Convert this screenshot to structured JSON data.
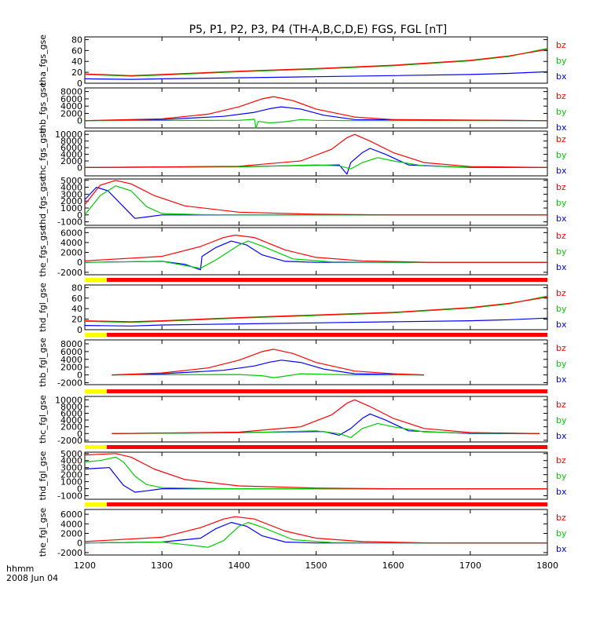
{
  "figure": {
    "title": "P5, P1, P2, P3, P4 (TH-A,B,C,D,E) FGS, FGL [nT]",
    "xaxis_label_line1": "hhmm",
    "xaxis_label_line2": "2008 Jun 04"
  },
  "colors": {
    "bx": "#0000ff",
    "by": "#00cc00",
    "bz": "#ff0000",
    "bar_yellow": "#ffff00",
    "bar_red": "#ff0000",
    "bar_black": "#000000",
    "axis": "#000000"
  },
  "chart_data": [
    {
      "type": "line",
      "panel": "tha_fgs_gse",
      "ylabel": "tha_fgs_gse",
      "ylim": [
        0,
        85
      ],
      "yticks": [
        0,
        20,
        40,
        60,
        80
      ],
      "xlim": [
        1200,
        1800
      ],
      "legend": [
        "bz",
        "by",
        "bx"
      ],
      "series": [
        {
          "name": "bz",
          "x": [
            1200,
            1260,
            1300,
            1400,
            1500,
            1600,
            1700,
            1750,
            1800
          ],
          "y": [
            17,
            14,
            16,
            22,
            27,
            33,
            42,
            50,
            62
          ]
        },
        {
          "name": "by",
          "x": [
            1200,
            1260,
            1300,
            1400,
            1500,
            1600,
            1700,
            1750,
            1800
          ],
          "y": [
            16,
            13,
            15,
            21,
            26,
            32,
            41,
            49,
            64
          ]
        },
        {
          "name": "bx",
          "x": [
            1200,
            1260,
            1300,
            1400,
            1500,
            1600,
            1700,
            1750,
            1800
          ],
          "y": [
            8,
            7,
            8,
            10,
            12,
            14,
            16,
            18,
            21
          ]
        }
      ]
    },
    {
      "type": "line",
      "panel": "thb_fgs_gse",
      "ylabel": "thb_fgs_gse",
      "ylim": [
        -2000,
        9000
      ],
      "yticks": [
        0,
        2000,
        4000,
        6000,
        8000
      ],
      "xlim": [
        1200,
        1800
      ],
      "legend": [
        "bz",
        "by",
        "bx"
      ],
      "series": [
        {
          "name": "bz",
          "x": [
            1200,
            1300,
            1360,
            1400,
            1430,
            1445,
            1470,
            1500,
            1550,
            1600,
            1800
          ],
          "y": [
            0,
            500,
            1800,
            3800,
            6000,
            6600,
            5500,
            3200,
            1000,
            300,
            0
          ]
        },
        {
          "name": "by",
          "x": [
            1200,
            1400,
            1420,
            1422,
            1425,
            1440,
            1460,
            1480,
            1500,
            1550,
            1800
          ],
          "y": [
            0,
            100,
            400,
            -2000,
            -200,
            -600,
            -300,
            300,
            100,
            0,
            0
          ]
        },
        {
          "name": "bx",
          "x": [
            1200,
            1300,
            1380,
            1420,
            1440,
            1455,
            1480,
            1510,
            1550,
            1800
          ],
          "y": [
            0,
            300,
            1200,
            2300,
            3300,
            3800,
            3200,
            1500,
            300,
            0
          ]
        }
      ]
    },
    {
      "type": "line",
      "panel": "thc_fgs_gse",
      "ylabel": "thc_fgs_gse",
      "ylim": [
        -2500,
        11000
      ],
      "yticks": [
        0,
        2000,
        4000,
        6000,
        8000,
        10000
      ],
      "xlim": [
        1200,
        1800
      ],
      "legend": [
        "bz",
        "by",
        "bx"
      ],
      "series": [
        {
          "name": "bz",
          "x": [
            1200,
            1400,
            1480,
            1520,
            1540,
            1550,
            1570,
            1600,
            1640,
            1700,
            1800
          ],
          "y": [
            0,
            400,
            2000,
            5500,
            9000,
            10000,
            8000,
            4500,
            1500,
            300,
            0
          ]
        },
        {
          "name": "by",
          "x": [
            1200,
            1400,
            1500,
            1530,
            1545,
            1560,
            1580,
            1600,
            1640,
            1700,
            1800
          ],
          "y": [
            0,
            200,
            800,
            500,
            -400,
            1500,
            3000,
            2000,
            500,
            100,
            0
          ]
        },
        {
          "name": "bx",
          "x": [
            1200,
            1400,
            1530,
            1540,
            1545,
            1560,
            1570,
            1590,
            1620,
            1700,
            1800
          ],
          "y": [
            0,
            300,
            800,
            -2000,
            1500,
            4500,
            5800,
            4000,
            800,
            0,
            0
          ]
        }
      ]
    },
    {
      "type": "line",
      "panel": "thd_fgs_gse",
      "ylabel": "thd_fgs_gse",
      "ylim": [
        -1500,
        5200
      ],
      "yticks": [
        -1000,
        0,
        1000,
        2000,
        3000,
        4000,
        5000
      ],
      "xlim": [
        1200,
        1800
      ],
      "legend": [
        "bz",
        "by",
        "bx"
      ],
      "series": [
        {
          "name": "bz",
          "x": [
            1200,
            1220,
            1240,
            1260,
            1290,
            1330,
            1400,
            1500,
            1600,
            1800
          ],
          "y": [
            1500,
            4300,
            5000,
            4500,
            2800,
            1300,
            400,
            100,
            0,
            0
          ]
        },
        {
          "name": "by",
          "x": [
            1200,
            1220,
            1240,
            1260,
            1280,
            1300,
            1350,
            1400,
            1800
          ],
          "y": [
            0,
            2800,
            4200,
            3500,
            1200,
            200,
            50,
            0,
            0
          ]
        },
        {
          "name": "bx",
          "x": [
            1200,
            1215,
            1230,
            1250,
            1265,
            1280,
            1300,
            1350,
            1400,
            1800
          ],
          "y": [
            2200,
            4000,
            3500,
            1200,
            -500,
            -300,
            0,
            0,
            0,
            0
          ]
        }
      ]
    },
    {
      "type": "line",
      "panel": "the_fgs_gse",
      "ylabel": "the_fgs_gse",
      "ylim": [
        -2500,
        7000
      ],
      "yticks": [
        -2000,
        0,
        2000,
        4000,
        6000
      ],
      "xlim": [
        1200,
        1800
      ],
      "legend": [
        "bz",
        "by",
        "bx"
      ],
      "series": [
        {
          "name": "bz",
          "x": [
            1200,
            1300,
            1350,
            1380,
            1395,
            1420,
            1460,
            1500,
            1560,
            1650,
            1800
          ],
          "y": [
            300,
            1200,
            3200,
            5000,
            5500,
            5000,
            2500,
            1000,
            300,
            0,
            0
          ]
        },
        {
          "name": "by",
          "x": [
            1200,
            1300,
            1350,
            1370,
            1400,
            1412,
            1430,
            1470,
            1520,
            1600,
            1800
          ],
          "y": [
            0,
            200,
            -1200,
            500,
            3500,
            4300,
            3300,
            700,
            100,
            0,
            0
          ]
        },
        {
          "name": "bx",
          "x": [
            1200,
            1300,
            1330,
            1350,
            1352,
            1370,
            1390,
            1410,
            1430,
            1460,
            1500,
            1600,
            1800
          ],
          "y": [
            0,
            200,
            -400,
            -1500,
            1200,
            3000,
            4300,
            3500,
            1500,
            200,
            0,
            0,
            0
          ]
        }
      ]
    },
    {
      "type": "line",
      "panel": "thd_fgl_gse",
      "ylabel": "thd_fgl_gse",
      "ylim": [
        0,
        85
      ],
      "yticks": [
        0,
        20,
        40,
        60,
        80
      ],
      "xlim": [
        1200,
        1800
      ],
      "legend": [
        "bz",
        "by",
        "bx"
      ],
      "series": [
        {
          "name": "bz",
          "x": [
            1200,
            1260,
            1300,
            1400,
            1500,
            1600,
            1700,
            1750,
            1800
          ],
          "y": [
            17,
            15,
            17,
            23,
            28,
            33,
            42,
            50,
            62
          ]
        },
        {
          "name": "by",
          "x": [
            1200,
            1260,
            1300,
            1400,
            1500,
            1600,
            1700,
            1750,
            1800
          ],
          "y": [
            16,
            14,
            16,
            22,
            27,
            32,
            41,
            49,
            64
          ]
        },
        {
          "name": "bx",
          "x": [
            1200,
            1260,
            1300,
            1400,
            1500,
            1600,
            1700,
            1750,
            1800
          ],
          "y": [
            8,
            7,
            9,
            11,
            13,
            15,
            17,
            19,
            22
          ]
        }
      ]
    },
    {
      "type": "line",
      "panel": "thb_fgl_gse",
      "ylabel": "thb_fgl_gse",
      "ylim": [
        -2500,
        9000
      ],
      "yticks": [
        -2000,
        0,
        2000,
        4000,
        6000,
        8000
      ],
      "xlim": [
        1200,
        1800
      ],
      "legend": [
        "bz",
        "by",
        "bx"
      ],
      "series": [
        {
          "name": "bz",
          "x": [
            1235,
            1300,
            1360,
            1400,
            1430,
            1445,
            1470,
            1500,
            1550,
            1600,
            1640
          ],
          "y": [
            0,
            500,
            1800,
            3800,
            6000,
            6600,
            5500,
            3200,
            1000,
            300,
            0
          ]
        },
        {
          "name": "by",
          "x": [
            1235,
            1400,
            1430,
            1445,
            1460,
            1480,
            1500,
            1550,
            1640
          ],
          "y": [
            0,
            100,
            -200,
            -700,
            -300,
            300,
            200,
            0,
            0
          ]
        },
        {
          "name": "bx",
          "x": [
            1235,
            1300,
            1380,
            1420,
            1440,
            1455,
            1480,
            1510,
            1550,
            1640
          ],
          "y": [
            0,
            300,
            1200,
            2300,
            3300,
            3800,
            3200,
            1500,
            300,
            0
          ]
        }
      ]
    },
    {
      "type": "line",
      "panel": "thc_fgl_gse",
      "ylabel": "thc_fgl_gse",
      "ylim": [
        -2500,
        11000
      ],
      "yticks": [
        -2000,
        0,
        2000,
        4000,
        6000,
        8000,
        10000
      ],
      "xlim": [
        1200,
        1800
      ],
      "legend": [
        "bz",
        "by",
        "bx"
      ],
      "series": [
        {
          "name": "bz",
          "x": [
            1235,
            1400,
            1480,
            1520,
            1540,
            1550,
            1570,
            1600,
            1640,
            1700,
            1790
          ],
          "y": [
            0,
            400,
            2000,
            5500,
            9000,
            10000,
            8000,
            4500,
            1500,
            300,
            0
          ]
        },
        {
          "name": "by",
          "x": [
            1235,
            1400,
            1500,
            1530,
            1545,
            1560,
            1580,
            1600,
            1640,
            1700,
            1790
          ],
          "y": [
            0,
            200,
            800,
            0,
            -1200,
            1500,
            3000,
            2000,
            500,
            100,
            0
          ]
        },
        {
          "name": "bx",
          "x": [
            1235,
            1400,
            1510,
            1530,
            1545,
            1560,
            1570,
            1590,
            1620,
            1700,
            1790
          ],
          "y": [
            0,
            300,
            600,
            -500,
            1500,
            4500,
            5800,
            4000,
            800,
            0,
            0
          ]
        }
      ]
    },
    {
      "type": "line",
      "panel": "thd_fgl_gse",
      "ylabel": "thd_fgl_gse",
      "ylim": [
        -1500,
        5200
      ],
      "yticks": [
        -1000,
        0,
        1000,
        2000,
        3000,
        4000,
        5000
      ],
      "xlim": [
        1200,
        1800
      ],
      "legend": [
        "bz",
        "by",
        "bx"
      ],
      "series": [
        {
          "name": "bz",
          "x": [
            1200,
            1220,
            1240,
            1260,
            1290,
            1330,
            1400,
            1500,
            1600,
            1800
          ],
          "y": [
            4800,
            4900,
            5000,
            4500,
            2800,
            1300,
            400,
            100,
            0,
            0
          ]
        },
        {
          "name": "by",
          "x": [
            1200,
            1220,
            1240,
            1250,
            1265,
            1280,
            1300,
            1350,
            1400,
            1800
          ],
          "y": [
            3800,
            4000,
            4500,
            3800,
            1800,
            600,
            150,
            50,
            0,
            0
          ]
        },
        {
          "name": "bx",
          "x": [
            1200,
            1230,
            1232,
            1250,
            1265,
            1280,
            1300,
            1350,
            1400,
            1800
          ],
          "y": [
            2800,
            3000,
            3000,
            500,
            -500,
            -300,
            0,
            0,
            0,
            0
          ]
        }
      ]
    },
    {
      "type": "line",
      "panel": "the_fgl_gse",
      "ylabel": "the_fgl_gse",
      "ylim": [
        -2500,
        7000
      ],
      "yticks": [
        -2000,
        0,
        2000,
        4000,
        6000
      ],
      "xlim": [
        1200,
        1800
      ],
      "legend": [
        "bz",
        "by",
        "bx"
      ],
      "series": [
        {
          "name": "bz",
          "x": [
            1200,
            1300,
            1350,
            1380,
            1395,
            1420,
            1460,
            1500,
            1560,
            1650,
            1800
          ],
          "y": [
            300,
            1200,
            3200,
            5000,
            5500,
            5000,
            2500,
            1000,
            300,
            0,
            0
          ]
        },
        {
          "name": "by",
          "x": [
            1200,
            1300,
            1340,
            1360,
            1380,
            1400,
            1412,
            1430,
            1470,
            1520,
            1600,
            1800
          ],
          "y": [
            0,
            200,
            -500,
            -900,
            500,
            3500,
            4300,
            3300,
            700,
            100,
            0,
            0
          ]
        },
        {
          "name": "bx",
          "x": [
            1200,
            1300,
            1350,
            1370,
            1390,
            1410,
            1430,
            1460,
            1500,
            1600,
            1800
          ],
          "y": [
            0,
            200,
            1000,
            3000,
            4300,
            3500,
            1500,
            200,
            0,
            0,
            0
          ]
        }
      ]
    }
  ],
  "xaxis": {
    "ticks": [
      1200,
      1300,
      1400,
      1500,
      1600,
      1700,
      1800
    ],
    "tick_labels": [
      "1200",
      "1300",
      "1400",
      "1500",
      "1600",
      "1700",
      "1800"
    ]
  }
}
